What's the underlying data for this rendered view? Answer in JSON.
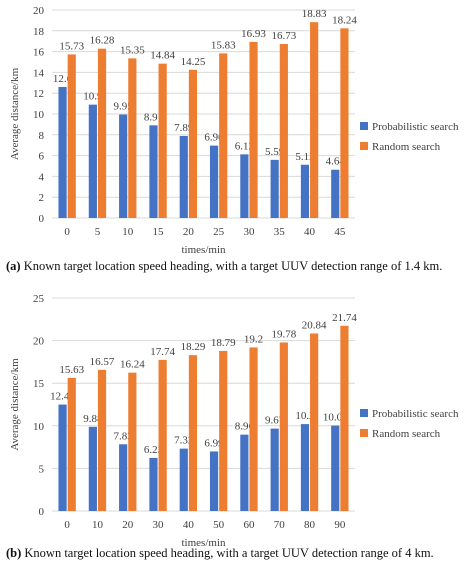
{
  "chart_data": [
    {
      "type": "bar",
      "panel": "a",
      "caption_letter": "(a)",
      "caption": "Known target location speed heading, with a target UUV detection range of 1.4 km.",
      "xlabel": "times/min",
      "ylabel": "Average distance/km",
      "ylim": [
        0,
        20
      ],
      "yticks": [
        0,
        2,
        4,
        6,
        8,
        10,
        12,
        14,
        16,
        18,
        20
      ],
      "grid": "horizontal",
      "legend_position": "right",
      "categories": [
        "0",
        "5",
        "10",
        "15",
        "20",
        "25",
        "30",
        "35",
        "40",
        "45"
      ],
      "series": [
        {
          "name": "Probabilistic search",
          "color": "#4472C4",
          "values": [
            12.6,
            10.9,
            9.95,
            8.91,
            7.89,
            6.96,
            6.12,
            5.59,
            5.12,
            4.64
          ]
        },
        {
          "name": "Random search",
          "color": "#ED7D31",
          "values": [
            15.73,
            16.28,
            15.35,
            14.84,
            14.25,
            15.83,
            16.93,
            16.73,
            18.83,
            18.24
          ]
        }
      ]
    },
    {
      "type": "bar",
      "panel": "b",
      "caption_letter": "(b)",
      "caption": "Known target location speed heading, with a target UUV detection range of 4 km.",
      "xlabel": "times/min",
      "ylabel": "Average distance/km",
      "ylim": [
        0,
        25
      ],
      "yticks": [
        0,
        5,
        10,
        15,
        20,
        25
      ],
      "grid": "horizontal",
      "legend_position": "right",
      "categories": [
        "0",
        "10",
        "20",
        "30",
        "40",
        "50",
        "60",
        "70",
        "80",
        "90"
      ],
      "series": [
        {
          "name": "Probabilistic search",
          "color": "#4472C4",
          "values": [
            12.49,
            9.88,
            7.83,
            6.23,
            7.32,
            6.99,
            8.96,
            9.67,
            10.2,
            10.03
          ]
        },
        {
          "name": "Random search",
          "color": "#ED7D31",
          "values": [
            15.63,
            16.57,
            16.24,
            17.74,
            18.29,
            18.79,
            19.2,
            19.78,
            20.84,
            21.74
          ]
        }
      ]
    }
  ]
}
